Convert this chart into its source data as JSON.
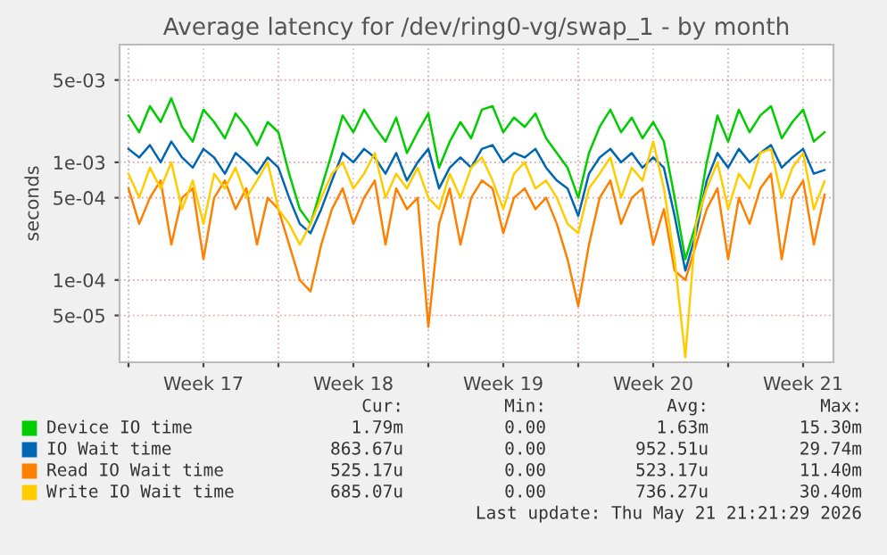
{
  "chart_data": {
    "type": "line",
    "title": "Average latency for /dev/ring0-vg/swap_1 - by month",
    "ylabel": "seconds",
    "x": [
      "2026-04-20T00:00",
      "2026-04-20T12:00",
      "2026-04-21T00:00",
      "2026-04-21T12:00",
      "2026-04-22T00:00",
      "2026-04-22T12:00",
      "2026-04-23T00:00",
      "2026-04-23T12:00",
      "2026-04-24T00:00",
      "2026-04-24T12:00",
      "2026-04-25T00:00",
      "2026-04-25T12:00",
      "2026-04-26T00:00",
      "2026-04-26T12:00",
      "2026-04-27T00:00",
      "2026-04-27T12:00",
      "2026-04-28T00:00",
      "2026-04-28T12:00",
      "2026-04-29T00:00",
      "2026-04-29T12:00",
      "2026-04-30T00:00",
      "2026-04-30T12:00",
      "2026-05-01T00:00",
      "2026-05-01T12:00",
      "2026-05-02T00:00",
      "2026-05-02T12:00",
      "2026-05-03T00:00",
      "2026-05-03T12:00",
      "2026-05-04T00:00",
      "2026-05-04T12:00",
      "2026-05-05T00:00",
      "2026-05-05T12:00",
      "2026-05-06T00:00",
      "2026-05-06T12:00",
      "2026-05-07T00:00",
      "2026-05-07T12:00",
      "2026-05-08T00:00",
      "2026-05-08T12:00",
      "2026-05-09T00:00",
      "2026-05-09T12:00",
      "2026-05-10T00:00",
      "2026-05-10T12:00",
      "2026-05-11T00:00",
      "2026-05-11T12:00",
      "2026-05-12T00:00",
      "2026-05-12T12:00",
      "2026-05-13T00:00",
      "2026-05-13T12:00",
      "2026-05-14T00:00",
      "2026-05-14T12:00",
      "2026-05-15T00:00",
      "2026-05-15T12:00",
      "2026-05-16T00:00",
      "2026-05-16T12:00",
      "2026-05-17T00:00",
      "2026-05-17T12:00",
      "2026-05-18T00:00",
      "2026-05-18T12:00",
      "2026-05-19T00:00",
      "2026-05-19T12:00",
      "2026-05-20T00:00",
      "2026-05-20T12:00",
      "2026-05-21T00:00",
      "2026-05-21T12:00",
      "2026-05-22T00:00",
      "2026-05-22T12:00"
    ],
    "series": [
      {
        "name": "Device IO time",
        "color": "#00cc00",
        "values": [
          0.0025,
          0.0018,
          0.003,
          0.0022,
          0.0035,
          0.002,
          0.0015,
          0.0028,
          0.0022,
          0.0016,
          0.0026,
          0.002,
          0.0014,
          0.0022,
          0.0018,
          0.0008,
          0.0004,
          0.0003,
          0.0006,
          0.0012,
          0.0025,
          0.0018,
          0.0028,
          0.002,
          0.0015,
          0.0024,
          0.0012,
          0.0018,
          0.0026,
          0.0009,
          0.0015,
          0.0022,
          0.0016,
          0.0028,
          0.003,
          0.0018,
          0.0024,
          0.002,
          0.0026,
          0.0016,
          0.0012,
          0.0009,
          0.0005,
          0.0012,
          0.002,
          0.0028,
          0.0018,
          0.0024,
          0.0016,
          0.0022,
          0.0015,
          0.0005,
          0.00015,
          0.0003,
          0.001,
          0.0025,
          0.0015,
          0.0028,
          0.0018,
          0.0025,
          0.003,
          0.0016,
          0.0022,
          0.0028,
          0.0015,
          0.0018
        ]
      },
      {
        "name": "IO Wait time",
        "color": "#0066b3",
        "values": [
          0.0013,
          0.0011,
          0.0014,
          0.001,
          0.0015,
          0.0011,
          0.0009,
          0.0013,
          0.0011,
          0.0008,
          0.0012,
          0.001,
          0.0008,
          0.0011,
          0.0009,
          0.0005,
          0.0003,
          0.00025,
          0.0004,
          0.0007,
          0.0012,
          0.001,
          0.0013,
          0.0011,
          0.0008,
          0.0012,
          0.0007,
          0.001,
          0.0013,
          0.0006,
          0.0009,
          0.0011,
          0.0009,
          0.0013,
          0.0014,
          0.001,
          0.0012,
          0.0011,
          0.0013,
          0.0009,
          0.0007,
          0.0006,
          0.00035,
          0.0008,
          0.0011,
          0.0013,
          0.001,
          0.0012,
          0.0009,
          0.0011,
          0.0009,
          0.00035,
          0.00012,
          0.00025,
          0.0007,
          0.0012,
          0.0009,
          0.0013,
          0.001,
          0.0012,
          0.0014,
          0.0009,
          0.0011,
          0.0013,
          0.0008,
          0.00086
        ]
      },
      {
        "name": "Read IO Wait time",
        "color": "#ff8000",
        "values": [
          0.0006,
          0.0003,
          0.0005,
          0.0007,
          0.0002,
          0.0005,
          0.0006,
          0.00015,
          0.0005,
          0.0007,
          0.0004,
          0.0006,
          0.0002,
          0.0005,
          0.0004,
          0.0002,
          0.0001,
          8e-05,
          0.0002,
          0.0004,
          0.0006,
          0.0003,
          0.0005,
          0.0007,
          0.0002,
          0.0006,
          0.0004,
          0.0005,
          4e-05,
          0.0003,
          0.0006,
          0.0002,
          0.0005,
          0.0007,
          0.0006,
          0.00025,
          0.0005,
          0.0006,
          0.0004,
          0.0005,
          0.0003,
          0.00015,
          6e-05,
          0.0002,
          0.0005,
          0.0007,
          0.0003,
          0.0005,
          0.0006,
          0.0002,
          0.0004,
          0.00012,
          0.0001,
          0.0002,
          0.0004,
          0.0006,
          0.00015,
          0.0005,
          0.0003,
          0.0006,
          0.0008,
          0.00015,
          0.0005,
          0.0007,
          0.0002,
          0.00053
        ]
      },
      {
        "name": "Write IO Wait time",
        "color": "#ffcc00",
        "values": [
          0.0008,
          0.0005,
          0.0009,
          0.0006,
          0.001,
          0.0004,
          0.0007,
          0.0003,
          0.0008,
          0.0006,
          0.0009,
          0.0005,
          0.0007,
          0.001,
          0.0004,
          0.0003,
          0.0002,
          0.0003,
          0.0005,
          0.0008,
          0.001,
          0.0006,
          0.0008,
          0.0012,
          0.0005,
          0.0008,
          0.0006,
          0.0009,
          0.0005,
          0.0004,
          0.0008,
          0.0005,
          0.0009,
          0.0011,
          0.0007,
          0.0004,
          0.0008,
          0.001,
          0.0006,
          0.0007,
          0.0005,
          0.0003,
          0.00025,
          0.0006,
          0.0008,
          0.0011,
          0.0005,
          0.0009,
          0.0007,
          0.0015,
          0.0006,
          0.00015,
          2.2e-05,
          0.0003,
          0.0006,
          0.001,
          0.0004,
          0.0008,
          0.0006,
          0.0012,
          0.0013,
          0.0005,
          0.0009,
          0.0012,
          0.0004,
          0.00069
        ]
      }
    ],
    "log": "y",
    "ylim": [
      2e-05,
      0.01
    ],
    "yticks": [
      {
        "value": 5e-05,
        "label": "5e-05"
      },
      {
        "value": 0.0001,
        "label": "1e-04"
      },
      {
        "value": 0.0005,
        "label": "5e-04"
      },
      {
        "value": 0.001,
        "label": "1e-03"
      },
      {
        "value": 0.005,
        "label": "5e-03"
      }
    ],
    "xlim": [
      "2026-04-19T14:00",
      "2026-05-22T22:00"
    ],
    "xticks": [
      {
        "value": "2026-04-20T00:00",
        "label": null
      },
      {
        "value": "2026-04-23T12:00",
        "label": "Week 17"
      },
      {
        "value": "2026-04-27T00:00",
        "label": null
      },
      {
        "value": "2026-04-30T12:00",
        "label": "Week 18"
      },
      {
        "value": "2026-05-04T00:00",
        "label": null
      },
      {
        "value": "2026-05-07T12:00",
        "label": "Week 19"
      },
      {
        "value": "2026-05-11T00:00",
        "label": null
      },
      {
        "value": "2026-05-14T12:00",
        "label": "Week 20"
      },
      {
        "value": "2026-05-18T00:00",
        "label": null
      },
      {
        "value": "2026-05-21T12:00",
        "label": "Week 21"
      }
    ],
    "grid": true,
    "legend": "bottom",
    "marker": "none",
    "line_style": "solid",
    "annotations": [
      "Cur:",
      "Min:",
      "Avg:",
      "Max:",
      "1.79m",
      "0.00",
      "1.63m",
      "15.30m",
      "863.67u",
      "0.00",
      "952.51u",
      "29.74m",
      "525.17u",
      "0.00",
      "523.17u",
      "11.40m",
      "685.07u",
      "0.00",
      "736.27u",
      "30.40m",
      "Last update: Thu May 21 21:21:29 2026"
    ]
  }
}
